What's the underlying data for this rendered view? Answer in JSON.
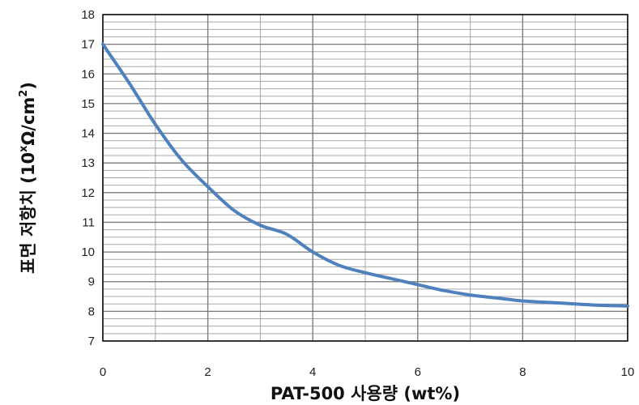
{
  "chart_data": {
    "type": "line",
    "title": "",
    "xlabel": "PAT-500 사용량 (wt%)",
    "ylabel": {
      "prefix": "표면 저항치 (10",
      "sup1": "x",
      "middle": "Ω/cm",
      "sup2": "2",
      "suffix": ")"
    },
    "xlim": [
      0,
      10
    ],
    "ylim": [
      7,
      18
    ],
    "xticks": [
      0,
      2,
      4,
      6,
      8,
      10
    ],
    "yticks": [
      7,
      8,
      9,
      10,
      11,
      12,
      13,
      14,
      15,
      16,
      17,
      18
    ],
    "grid": true,
    "minor_grid": {
      "x_step": 1,
      "y_step": 0.25
    },
    "legend": "none",
    "series": [
      {
        "color": "#4F81BD",
        "x": [
          0,
          0.5,
          1,
          1.5,
          2,
          2.5,
          3,
          3.5,
          4,
          4.5,
          5,
          5.5,
          6,
          6.5,
          7,
          7.5,
          8,
          8.5,
          9,
          9.5,
          10
        ],
        "y": [
          17.0,
          15.7,
          14.3,
          13.1,
          12.2,
          11.4,
          10.9,
          10.6,
          10.0,
          9.55,
          9.3,
          9.1,
          8.9,
          8.7,
          8.55,
          8.45,
          8.35,
          8.3,
          8.25,
          8.2,
          8.18
        ]
      }
    ]
  }
}
